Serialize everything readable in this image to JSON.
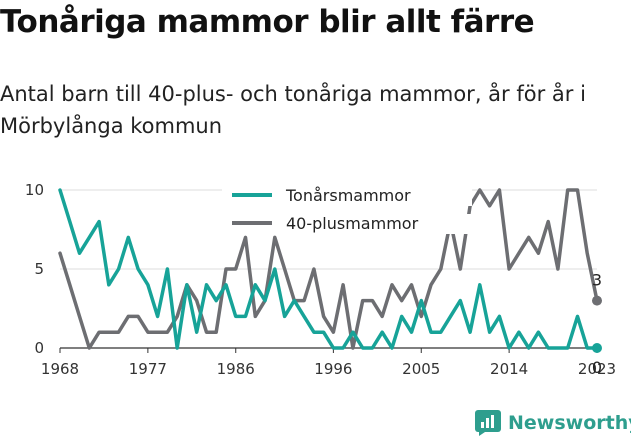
{
  "title": "Tonåriga mammor blir allt färre",
  "subtitle": "Antal barn till 40-plus- och tonåriga mammor, år för år i Mörbylånga kommun",
  "brand": {
    "name": "Newsworthy"
  },
  "colors": {
    "teen": "#17a398",
    "forty": "#6d6e72",
    "grid": "#dcdcdc"
  },
  "chart_data": {
    "type": "line",
    "x": [
      1968,
      1969,
      1970,
      1971,
      1972,
      1973,
      1974,
      1975,
      1976,
      1977,
      1978,
      1979,
      1980,
      1981,
      1982,
      1983,
      1984,
      1985,
      1986,
      1987,
      1988,
      1989,
      1990,
      1991,
      1992,
      1993,
      1994,
      1995,
      1996,
      1997,
      1998,
      1999,
      2000,
      2001,
      2002,
      2003,
      2004,
      2005,
      2006,
      2007,
      2008,
      2009,
      2010,
      2011,
      2012,
      2013,
      2014,
      2015,
      2016,
      2017,
      2018,
      2019,
      2020,
      2021,
      2022,
      2023
    ],
    "series": [
      {
        "name": "Tonårsmammor",
        "values": [
          10,
          8,
          6,
          7,
          8,
          4,
          5,
          7,
          5,
          4,
          2,
          5,
          0,
          4,
          1,
          4,
          3,
          4,
          2,
          2,
          4,
          3,
          5,
          2,
          3,
          2,
          1,
          1,
          0,
          0,
          1,
          0,
          0,
          1,
          0,
          2,
          1,
          3,
          1,
          1,
          2,
          3,
          1,
          4,
          1,
          2,
          0,
          1,
          0,
          1,
          0,
          0,
          0,
          2,
          0,
          0
        ]
      },
      {
        "name": "40-plusmammor",
        "values": [
          6,
          4,
          2,
          0,
          1,
          1,
          1,
          2,
          2,
          1,
          1,
          1,
          2,
          4,
          3,
          1,
          1,
          5,
          5,
          7,
          2,
          3,
          7,
          5,
          3,
          3,
          5,
          2,
          1,
          4,
          0,
          3,
          3,
          2,
          4,
          3,
          4,
          2,
          4,
          5,
          8,
          5,
          9,
          10,
          9,
          10,
          5,
          6,
          7,
          6,
          8,
          5,
          10,
          10,
          6,
          3
        ]
      }
    ],
    "xticks": [
      "1968",
      "1977",
      "1986",
      "1996",
      "2005",
      "2014",
      "2023"
    ],
    "yticks": [
      "0",
      "5",
      "10"
    ],
    "xlim": [
      1968,
      2023
    ],
    "ylim": [
      0,
      10
    ],
    "end_labels": [
      "3",
      "0"
    ],
    "legend": "top-center",
    "grid": "horizontal"
  }
}
